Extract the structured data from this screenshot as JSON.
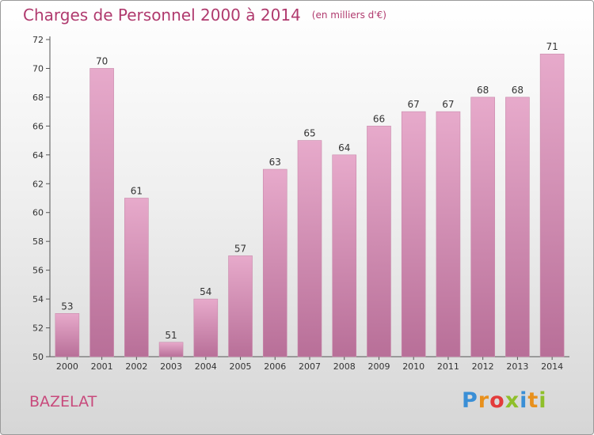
{
  "header": {
    "title": "Charges de Personnel 2000 à 2014",
    "unit": "(en milliers d'€)"
  },
  "footer": {
    "place": "BAZELAT",
    "logo_letters": [
      "P",
      "r",
      "o",
      "x",
      "i",
      "t",
      "i"
    ],
    "logo_colors": [
      "#3a8fd6",
      "#e8901c",
      "#e33b3b",
      "#8fbf2a",
      "#3a8fd6",
      "#e8901c",
      "#8fbf2a"
    ]
  },
  "colors": {
    "bar_light": "#e7aacb",
    "bar_dark": "#b86f98",
    "title": "#b03a6e",
    "axis": "#555555"
  },
  "chart_data": {
    "type": "bar",
    "title": "Charges de Personnel 2000 à 2014",
    "subtitle": "(en milliers d'€)",
    "xlabel": "",
    "ylabel": "",
    "categories": [
      "2000",
      "2001",
      "2002",
      "2003",
      "2004",
      "2005",
      "2006",
      "2007",
      "2008",
      "2009",
      "2010",
      "2011",
      "2012",
      "2013",
      "2014"
    ],
    "values": [
      53,
      70,
      61,
      51,
      54,
      57,
      63,
      65,
      64,
      66,
      67,
      67,
      68,
      68,
      71
    ],
    "ylim": [
      50,
      72
    ],
    "yticks": [
      50,
      52,
      54,
      56,
      58,
      60,
      62,
      64,
      66,
      68,
      70,
      72
    ],
    "grid": false,
    "legend": "none"
  }
}
